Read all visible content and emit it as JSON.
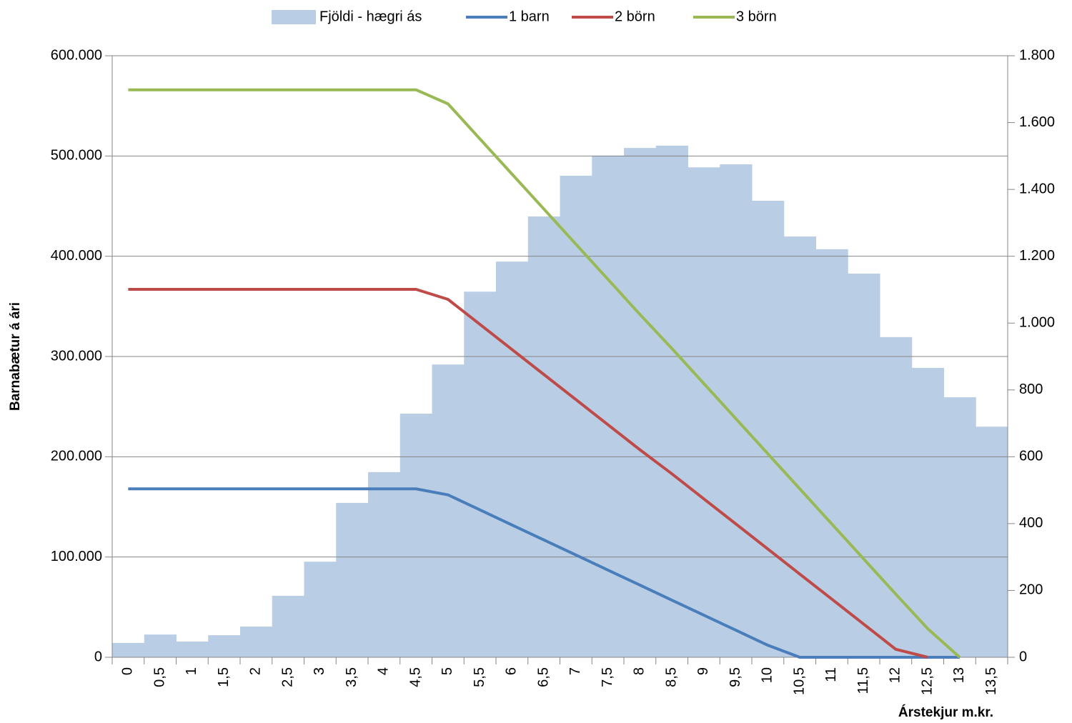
{
  "chart_data": {
    "type": "bar",
    "y_label": "Barnabætur á ári",
    "x_label": "Árstekjur m.kr.",
    "categories": [
      "0",
      "0,5",
      "1",
      "1,5",
      "2",
      "2,5",
      "3",
      "3,5",
      "4",
      "4,5",
      "5",
      "5,5",
      "6",
      "6,5",
      "7",
      "7,5",
      "8",
      "8,5",
      "9",
      "9,5",
      "10",
      "10,5",
      "11",
      "11,5",
      "12",
      "12,5",
      "13",
      "13,5"
    ],
    "series": [
      {
        "name": "Fjöldi - hægri ás",
        "type": "bar",
        "axis": "y2",
        "color": "#b9cde5",
        "values": [
          43,
          68,
          47,
          66,
          92,
          184,
          286,
          462,
          554,
          729,
          876,
          1094,
          1184,
          1319,
          1441,
          1501,
          1524,
          1531,
          1466,
          1475,
          1366,
          1259,
          1221,
          1148,
          958,
          866,
          778,
          690
        ]
      },
      {
        "name": "1 barn",
        "type": "line",
        "color": "#4a7ebb",
        "values": [
          168000,
          168000,
          168000,
          168000,
          168000,
          168000,
          168000,
          168000,
          168000,
          168000,
          162000,
          147000,
          132000,
          117000,
          102000,
          87000,
          72000,
          57000,
          42000,
          27000,
          12000,
          0,
          0,
          0,
          0,
          0,
          0,
          null
        ]
      },
      {
        "name": "2 börn",
        "type": "line",
        "color": "#be4b48",
        "values": [
          367000,
          367000,
          367000,
          367000,
          367000,
          367000,
          367000,
          367000,
          367000,
          367000,
          357000,
          332000,
          307000,
          282000,
          257000,
          232000,
          207000,
          183000,
          158000,
          133000,
          108000,
          83000,
          58000,
          33000,
          8000,
          0,
          null,
          null
        ]
      },
      {
        "name": "3 börn",
        "type": "line",
        "color": "#98b954",
        "values": [
          566000,
          566000,
          566000,
          566000,
          566000,
          566000,
          566000,
          566000,
          566000,
          566000,
          552000,
          517000,
          482000,
          447000,
          412000,
          377000,
          342000,
          308000,
          273000,
          238000,
          203000,
          168000,
          133000,
          98000,
          63000,
          28500,
          0,
          null
        ]
      }
    ],
    "ylim": [
      0,
      600000
    ],
    "yticks": [
      0,
      {
        "value": 100000,
        "label": "100.000"
      },
      {
        "value": 200000,
        "label": "200.000"
      },
      {
        "value": 300000,
        "label": "300.000"
      },
      {
        "value": 400000,
        "label": "400.000"
      },
      {
        "value": 500000,
        "label": "500.000"
      },
      {
        "value": 600000,
        "label": "600.000"
      }
    ],
    "y2lim": [
      0,
      1800
    ],
    "y2ticks": [
      0,
      200,
      400,
      600,
      800,
      {
        "value": 1000,
        "label": "1.000"
      },
      {
        "value": 1200,
        "label": "1.200"
      },
      {
        "value": 1400,
        "label": "1.400"
      },
      {
        "value": 1600,
        "label": "1.600"
      },
      {
        "value": 1800,
        "label": "1.800"
      }
    ],
    "grid": true,
    "legend": "top"
  }
}
